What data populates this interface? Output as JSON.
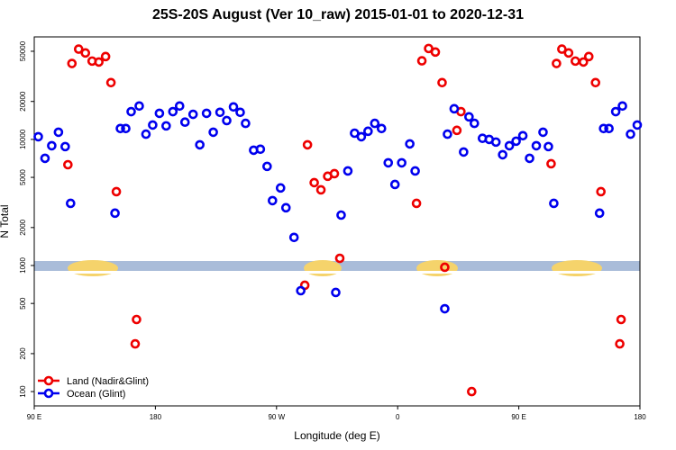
{
  "chart_data": {
    "type": "scatter",
    "title": "25S-20S August (Ver 10_raw)   2015-01-01 to 2020-12-31",
    "x_label": "Longitude (deg E)",
    "y_label": "N Total",
    "log_y": true,
    "legend": "bottom-left",
    "xlim": [
      90,
      540
    ],
    "xticks": [
      {
        "value": 90,
        "label": "90 E"
      },
      {
        "value": 180,
        "label": "180"
      },
      {
        "value": 270,
        "label": "90 W"
      },
      {
        "value": 360,
        "label": "0"
      },
      {
        "value": 450,
        "label": "90 E"
      },
      {
        "value": 540,
        "label": "180"
      }
    ],
    "ylim": [
      77,
      65000
    ],
    "yticks": [
      100,
      200,
      500,
      1000,
      2000,
      5000,
      10000,
      20000,
      50000
    ],
    "series": [
      {
        "name": "Land (Nadir&Glint)",
        "color": "#ee0000",
        "x": [
          115,
          118,
          123,
          128,
          133,
          138,
          143,
          147,
          151,
          165,
          166,
          291,
          293,
          298,
          303,
          308,
          313,
          317,
          374,
          378,
          383,
          388,
          393,
          395,
          404,
          407,
          415,
          474,
          478,
          482,
          487,
          492,
          498,
          502,
          507,
          511,
          525,
          526
        ],
        "values": [
          6300,
          40000,
          52000,
          48500,
          41800,
          41100,
          45400,
          28200,
          3850,
          239,
          373,
          697,
          9060,
          4540,
          3980,
          5100,
          5350,
          1140,
          3110,
          42000,
          52600,
          49300,
          28200,
          968,
          11800,
          16600,
          100,
          6410,
          40000,
          52000,
          48500,
          41800,
          41100,
          45400,
          28200,
          3850,
          239,
          373
        ]
      },
      {
        "name": "Ocean (Glint)",
        "color": "#0000ee",
        "x": [
          93,
          98,
          103,
          108,
          113,
          117,
          150,
          154,
          158,
          162,
          168,
          173,
          178,
          183,
          188,
          193,
          198,
          202,
          208,
          213,
          218,
          223,
          228,
          233,
          238,
          243,
          247,
          253,
          258,
          263,
          267,
          273,
          277,
          283,
          288,
          314,
          318,
          323,
          328,
          333,
          338,
          343,
          348,
          353,
          358,
          363,
          369,
          373,
          395,
          397,
          402,
          409,
          413,
          417,
          423,
          428,
          433,
          438,
          443,
          448,
          453,
          458,
          463,
          468,
          472,
          476,
          510,
          513,
          517,
          522,
          527,
          533,
          538
        ],
        "values": [
          10500,
          7080,
          8910,
          11400,
          8770,
          3110,
          2600,
          12200,
          12200,
          16600,
          18400,
          11000,
          13000,
          16100,
          12800,
          16600,
          18400,
          13700,
          15800,
          9060,
          16100,
          11400,
          16400,
          14100,
          18100,
          16400,
          13400,
          8210,
          8360,
          6110,
          3270,
          4120,
          2870,
          1670,
          631,
          611,
          2510,
          5620,
          11200,
          10500,
          11600,
          13400,
          12200,
          6520,
          4390,
          6520,
          9210,
          5620,
          454,
          11000,
          17500,
          7940,
          15100,
          13400,
          10200,
          10000,
          9520,
          7560,
          8910,
          9680,
          10700,
          7080,
          8910,
          11400,
          8770,
          3110,
          2600,
          12200,
          12200,
          16600,
          18400,
          11000,
          13000
        ]
      }
    ]
  }
}
